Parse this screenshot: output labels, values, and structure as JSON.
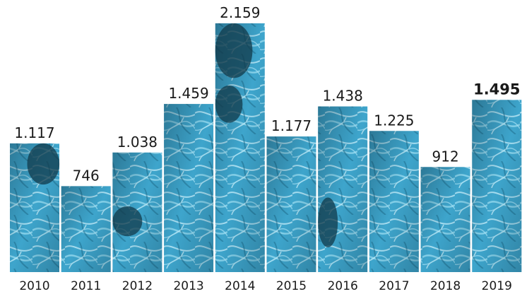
{
  "chart_data": {
    "type": "bar",
    "categories": [
      "2010",
      "2011",
      "2012",
      "2013",
      "2014",
      "2015",
      "2016",
      "2017",
      "2018",
      "2019"
    ],
    "values": [
      1117,
      746,
      1038,
      1459,
      2159,
      1177,
      1438,
      1225,
      912,
      1495
    ],
    "value_labels": [
      "1.117",
      "746",
      "1.038",
      "1.459",
      "2.159",
      "1.177",
      "1.438",
      "1.225",
      "912",
      "1.495"
    ],
    "highlight_index": 9,
    "ylim": [
      0,
      2159
    ],
    "grid": false,
    "legend": "none",
    "bar_color": "#4fb6d9",
    "bar_dark_color": "#12394a"
  }
}
